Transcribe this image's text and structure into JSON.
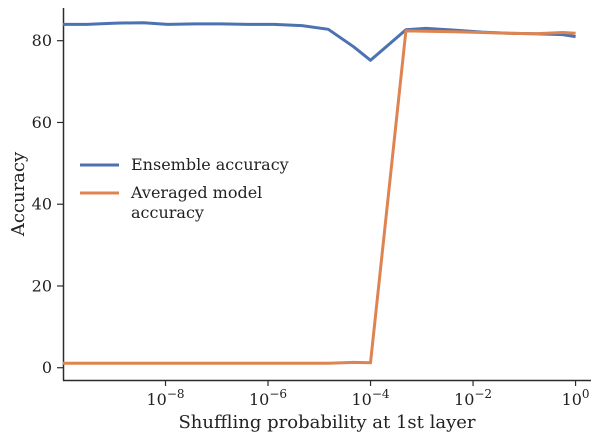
{
  "chart_data": {
    "type": "line",
    "xlabel": "Shuffling probability at 1st layer",
    "ylabel": "Accuracy",
    "xscale": "log",
    "xlim": [
      1e-10,
      2.0
    ],
    "ylim": [
      -3,
      88
    ],
    "yticks": [
      {
        "value": 0,
        "label": "0"
      },
      {
        "value": 20,
        "label": "20"
      },
      {
        "value": 40,
        "label": "40"
      },
      {
        "value": 60,
        "label": "60"
      },
      {
        "value": 80,
        "label": "80"
      }
    ],
    "xticks": [
      {
        "value": 1e-08,
        "base": "10",
        "exp": "−8"
      },
      {
        "value": 1e-06,
        "base": "10",
        "exp": "−6"
      },
      {
        "value": 0.0001,
        "base": "10",
        "exp": "−4"
      },
      {
        "value": 0.01,
        "base": "10",
        "exp": "−2"
      },
      {
        "value": 1,
        "base": "10",
        "exp": "0"
      }
    ],
    "legend_position": "center-left",
    "series": [
      {
        "name": "Ensemble accuracy",
        "color": "#4c72b0",
        "x": [
          1e-10,
          2.9e-10,
          1.1e-09,
          3.7e-09,
          1.1e-08,
          3.8e-08,
          1.2e-07,
          4.1e-07,
          1.3e-06,
          4.6e-06,
          1.5e-05,
          4.7e-05,
          0.0001,
          0.00049,
          0.0012,
          0.0043,
          0.015,
          0.05,
          0.16,
          0.56,
          1.0
        ],
        "values": [
          84.0,
          84.0,
          84.3,
          84.4,
          84.0,
          84.1,
          84.1,
          84.0,
          84.0,
          83.7,
          82.8,
          78.5,
          75.2,
          82.7,
          83.0,
          82.6,
          82.1,
          81.8,
          81.7,
          81.5,
          81.0
        ]
      },
      {
        "name": "Averaged model\naccuracy",
        "color": "#dd8452",
        "x": [
          1e-10,
          2.9e-10,
          1.1e-09,
          3.7e-09,
          1.1e-08,
          3.8e-08,
          1.2e-07,
          4.1e-07,
          1.3e-06,
          4.6e-06,
          1.5e-05,
          4.7e-05,
          0.0001,
          0.00049,
          0.0012,
          0.0043,
          0.015,
          0.05,
          0.16,
          0.56,
          1.0
        ],
        "values": [
          1.1,
          1.1,
          1.1,
          1.1,
          1.1,
          1.1,
          1.1,
          1.1,
          1.1,
          1.1,
          1.1,
          1.3,
          1.2,
          82.4,
          82.3,
          82.2,
          82.0,
          81.8,
          81.7,
          82.0,
          81.8
        ]
      }
    ]
  }
}
